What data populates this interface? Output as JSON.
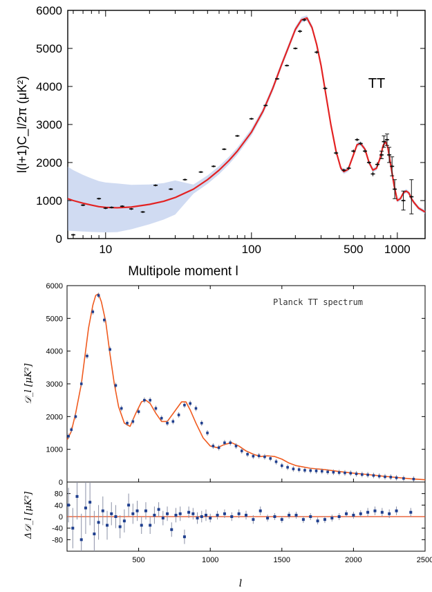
{
  "chart_data": [
    {
      "type": "line",
      "panel": "top",
      "title": "",
      "annotation": "TT",
      "xlabel": "Multipole moment l",
      "ylabel": "l(l+1)C_l/2π (μK²)",
      "x_scale": "log",
      "xlim": [
        5.5,
        1550
      ],
      "ylim": [
        0,
        6000
      ],
      "x_tick_labels": [
        "10",
        "100",
        "500",
        "1000"
      ],
      "x_ticks": [
        10,
        100,
        500,
        1000
      ],
      "y_ticks": [
        0,
        1000,
        2000,
        3000,
        4000,
        5000,
        6000
      ],
      "series": [
        {
          "kind": "model_curve",
          "color": "#e32222",
          "x": [
            5.5,
            6,
            7,
            8,
            9,
            10,
            12,
            15,
            20,
            25,
            30,
            40,
            50,
            60,
            70,
            80,
            100,
            120,
            140,
            160,
            180,
            200,
            220,
            240,
            260,
            280,
            300,
            320,
            350,
            380,
            410,
            430,
            460,
            500,
            530,
            560,
            600,
            640,
            680,
            720,
            760,
            800,
            830,
            860,
            900,
            950,
            1000,
            1050,
            1100,
            1150,
            1200,
            1250,
            1300,
            1400,
            1550
          ],
          "y": [
            1050,
            1000,
            930,
            880,
            840,
            820,
            810,
            830,
            900,
            980,
            1080,
            1300,
            1550,
            1800,
            2050,
            2300,
            2800,
            3350,
            3950,
            4550,
            5050,
            5500,
            5750,
            5800,
            5550,
            5100,
            4550,
            3900,
            3000,
            2300,
            1850,
            1760,
            1820,
            2200,
            2470,
            2500,
            2350,
            2000,
            1800,
            1850,
            2100,
            2450,
            2550,
            2400,
            1950,
            1400,
            1000,
            1050,
            1200,
            1250,
            1200,
            1050,
            950,
            800,
            700
          ]
        },
        {
          "kind": "measurements",
          "color": "#111111",
          "x": [
            6,
            7,
            9,
            10,
            11,
            13,
            15,
            18,
            22,
            28,
            35,
            45,
            55,
            65,
            80,
            100,
            125,
            150,
            175,
            200,
            215,
            230,
            280,
            320,
            380,
            430,
            465,
            500,
            530,
            560,
            600,
            640,
            680,
            730,
            780,
            810,
            850,
            880,
            920,
            960,
            1100,
            1250
          ],
          "y": [
            100,
            880,
            1050,
            800,
            820,
            850,
            780,
            700,
            1400,
            1300,
            1550,
            1750,
            1900,
            2350,
            2700,
            3150,
            3500,
            4200,
            4550,
            5000,
            5450,
            5750,
            4900,
            3950,
            2250,
            1800,
            1850,
            2300,
            2600,
            2500,
            2300,
            2000,
            1700,
            1950,
            2200,
            2550,
            2600,
            2200,
            1900,
            1300,
            1000,
            1100
          ],
          "err": [
            0,
            20,
            20,
            20,
            20,
            20,
            20,
            20,
            20,
            20,
            20,
            20,
            20,
            20,
            20,
            20,
            20,
            20,
            20,
            20,
            40,
            40,
            40,
            40,
            40,
            40,
            40,
            40,
            40,
            40,
            40,
            40,
            60,
            60,
            100,
            150,
            150,
            200,
            250,
            250,
            250,
            450
          ]
        }
      ]
    },
    {
      "type": "line",
      "panel": "bottom-main",
      "title": "",
      "annotation": "Planck TT spectrum",
      "xlabel": "",
      "ylabel": "𝒟_l  [μK²]",
      "xlim": [
        0,
        2500
      ],
      "ylim": [
        0,
        6000
      ],
      "y_ticks": [
        0,
        1000,
        2000,
        3000,
        4000,
        5000,
        6000
      ],
      "series": [
        {
          "kind": "model_curve",
          "color": "#f05a1e",
          "x": [
            2,
            30,
            60,
            100,
            150,
            180,
            200,
            220,
            240,
            270,
            300,
            330,
            360,
            400,
            440,
            480,
            520,
            550,
            580,
            620,
            660,
            700,
            750,
            800,
            830,
            860,
            900,
            950,
            1000,
            1050,
            1100,
            1150,
            1200,
            1250,
            1300,
            1350,
            1400,
            1450,
            1500,
            1550,
            1600,
            1700,
            1800,
            1900,
            2000,
            2100,
            2200,
            2300,
            2400,
            2500
          ],
          "y": [
            1300,
            1550,
            2100,
            3000,
            4700,
            5400,
            5700,
            5750,
            5500,
            4900,
            3900,
            3000,
            2300,
            1800,
            1700,
            2100,
            2450,
            2500,
            2400,
            2100,
            1850,
            1850,
            2150,
            2450,
            2450,
            2200,
            1800,
            1350,
            1100,
            1050,
            1150,
            1200,
            1100,
            950,
            850,
            780,
            800,
            780,
            700,
            580,
            500,
            420,
            380,
            320,
            270,
            230,
            180,
            140,
            100,
            70
          ]
        },
        {
          "kind": "measurements",
          "color": "#1f3f8f",
          "x": [
            10,
            30,
            60,
            100,
            140,
            180,
            220,
            260,
            300,
            340,
            380,
            420,
            460,
            500,
            540,
            580,
            620,
            660,
            700,
            740,
            780,
            820,
            860,
            900,
            940,
            980,
            1020,
            1060,
            1100,
            1140,
            1180,
            1220,
            1260,
            1300,
            1340,
            1380,
            1420,
            1460,
            1500,
            1540,
            1580,
            1620,
            1660,
            1700,
            1740,
            1780,
            1820,
            1860,
            1900,
            1940,
            1980,
            2020,
            2060,
            2100,
            2140,
            2180,
            2220,
            2260,
            2300,
            2350,
            2420
          ],
          "y": [
            1400,
            1600,
            2000,
            3000,
            3850,
            5200,
            5700,
            4950,
            4050,
            2950,
            2250,
            1800,
            1850,
            2150,
            2500,
            2500,
            2250,
            1950,
            1800,
            1850,
            2050,
            2350,
            2400,
            2250,
            1800,
            1500,
            1100,
            1050,
            1200,
            1200,
            1100,
            950,
            850,
            790,
            800,
            770,
            720,
            620,
            500,
            450,
            400,
            380,
            360,
            350,
            340,
            330,
            310,
            300,
            290,
            280,
            270,
            250,
            230,
            220,
            200,
            180,
            160,
            150,
            130,
            110,
            90
          ]
        }
      ]
    },
    {
      "type": "scatter",
      "panel": "bottom-residuals",
      "xlabel": "l",
      "ylabel": "Δ𝒟_l  [μK²]",
      "xlim": [
        0,
        2500
      ],
      "ylim": [
        -120,
        120
      ],
      "x_ticks": [
        500,
        1000,
        1500,
        2000,
        2500
      ],
      "y_ticks": [
        -80,
        -40,
        0,
        40,
        80
      ],
      "reference_line": {
        "y": 0,
        "color": "#e84a1a"
      },
      "series": [
        {
          "kind": "residuals",
          "color": "#1f3f8f",
          "x": [
            10,
            40,
            70,
            100,
            130,
            160,
            190,
            220,
            250,
            280,
            310,
            340,
            370,
            400,
            430,
            460,
            490,
            520,
            550,
            580,
            610,
            640,
            670,
            700,
            730,
            760,
            790,
            820,
            850,
            880,
            910,
            940,
            970,
            1000,
            1050,
            1100,
            1150,
            1200,
            1250,
            1300,
            1350,
            1400,
            1450,
            1500,
            1550,
            1600,
            1650,
            1700,
            1750,
            1800,
            1850,
            1900,
            1950,
            2000,
            2050,
            2100,
            2150,
            2200,
            2250,
            2300,
            2400
          ],
          "y": [
            40,
            -40,
            70,
            -80,
            30,
            50,
            -60,
            -20,
            20,
            -30,
            10,
            0,
            -35,
            -15,
            40,
            10,
            20,
            -30,
            20,
            -30,
            5,
            25,
            -5,
            10,
            -45,
            5,
            10,
            -70,
            15,
            10,
            -5,
            0,
            5,
            -5,
            5,
            10,
            0,
            10,
            5,
            -10,
            20,
            -5,
            0,
            -10,
            5,
            5,
            -10,
            0,
            -15,
            -10,
            -5,
            0,
            10,
            5,
            10,
            15,
            20,
            15,
            10,
            20,
            15
          ],
          "err": [
            60,
            70,
            80,
            90,
            90,
            80,
            80,
            60,
            50,
            50,
            40,
            40,
            40,
            40,
            40,
            35,
            35,
            30,
            30,
            30,
            30,
            25,
            25,
            25,
            25,
            25,
            25,
            25,
            20,
            20,
            20,
            20,
            20,
            15,
            15,
            15,
            15,
            15,
            15,
            15,
            15,
            12,
            12,
            12,
            12,
            12,
            12,
            12,
            12,
            12,
            12,
            12,
            12,
            12,
            12,
            15,
            15,
            15,
            15,
            15,
            15
          ]
        }
      ]
    }
  ]
}
